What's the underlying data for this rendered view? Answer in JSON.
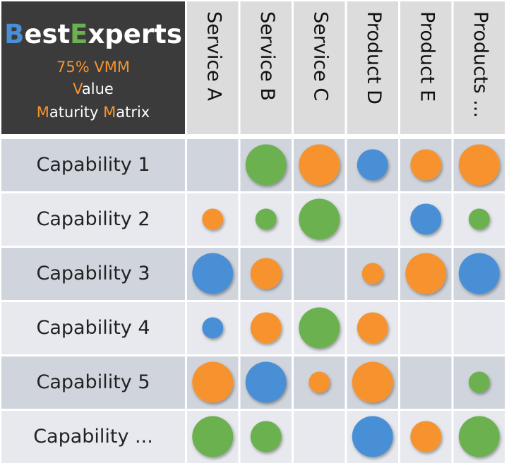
{
  "header": {
    "logo": [
      "B",
      "est",
      "E",
      "xperts"
    ],
    "subtitle": "75% VMM",
    "line2": [
      "V",
      "alue"
    ],
    "line3": [
      "M",
      "aturity ",
      "M",
      "atrix"
    ]
  },
  "columns": [
    "Service A",
    "Service B",
    "Service C",
    "Product D",
    "Product E",
    "Products ..."
  ],
  "rows": [
    {
      "label": "Capability 1",
      "cells": [
        null,
        {
          "color": "#6cb150",
          "size": 3
        },
        {
          "color": "#f7932f",
          "size": 3
        },
        {
          "color": "#4a8fd6",
          "size": 2
        },
        {
          "color": "#f7932f",
          "size": 2
        },
        {
          "color": "#f7932f",
          "size": 3
        }
      ]
    },
    {
      "label": "Capability 2",
      "cells": [
        {
          "color": "#f7932f",
          "size": 1
        },
        {
          "color": "#6cb150",
          "size": 1
        },
        {
          "color": "#6cb150",
          "size": 3
        },
        null,
        {
          "color": "#4a8fd6",
          "size": 2
        },
        {
          "color": "#6cb150",
          "size": 1
        }
      ]
    },
    {
      "label": "Capability 3",
      "cells": [
        {
          "color": "#4a8fd6",
          "size": 3
        },
        {
          "color": "#f7932f",
          "size": 2
        },
        null,
        {
          "color": "#f7932f",
          "size": 1
        },
        {
          "color": "#f7932f",
          "size": 3
        },
        {
          "color": "#4a8fd6",
          "size": 3
        }
      ]
    },
    {
      "label": "Capability 4",
      "cells": [
        {
          "color": "#4a8fd6",
          "size": 1
        },
        {
          "color": "#f7932f",
          "size": 2
        },
        {
          "color": "#6cb150",
          "size": 3
        },
        {
          "color": "#f7932f",
          "size": 2
        },
        null,
        null
      ]
    },
    {
      "label": "Capability 5",
      "cells": [
        {
          "color": "#f7932f",
          "size": 3
        },
        {
          "color": "#4a8fd6",
          "size": 3
        },
        {
          "color": "#f7932f",
          "size": 1
        },
        {
          "color": "#f7932f",
          "size": 3
        },
        null,
        {
          "color": "#6cb150",
          "size": 1
        }
      ]
    },
    {
      "label": "Capability ...",
      "cells": [
        {
          "color": "#6cb150",
          "size": 3
        },
        {
          "color": "#6cb150",
          "size": 2
        },
        null,
        {
          "color": "#4a8fd6",
          "size": 3
        },
        {
          "color": "#f7932f",
          "size": 2
        },
        {
          "color": "#6cb150",
          "size": 3
        }
      ]
    }
  ]
}
